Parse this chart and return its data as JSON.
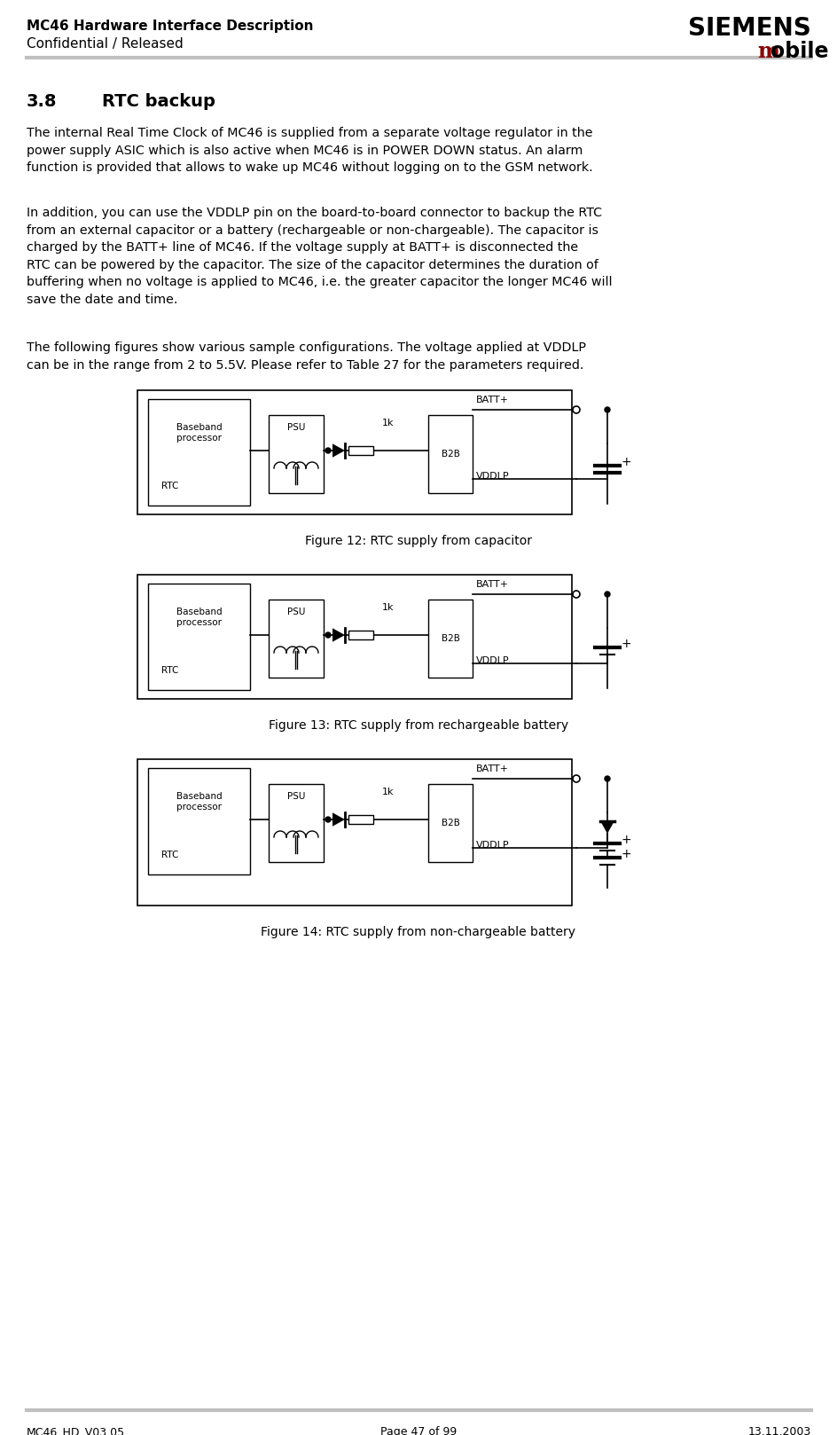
{
  "header_line1": "MC46 Hardware Interface Description",
  "header_line2": "Confidential / Released",
  "siemens_text": "SIEMENS",
  "footer_left": "MC46_HD_V03.05",
  "footer_center": "Page 47 of 99",
  "footer_right": "13.11.2003",
  "para1": "The internal Real Time Clock of MC46 is supplied from a separate voltage regulator in the\npower supply ASIC which is also active when MC46 is in POWER DOWN status. An alarm\nfunction is provided that allows to wake up MC46 without logging on to the GSM network.",
  "para2": "In addition, you can use the VDDLP pin on the board-to-board connector to backup the RTC\nfrom an external capacitor or a battery (rechargeable or non-chargeable). The capacitor is\ncharged by the BATT+ line of MC46. If the voltage supply at BATT+ is disconnected the\nRTC can be powered by the capacitor. The size of the capacitor determines the duration of\nbuffering when no voltage is applied to MC46, i.e. the greater capacitor the longer MC46 will\nsave the date and time.",
  "para3": "The following figures show various sample configurations. The voltage applied at VDDLP\ncan be in the range from 2 to 5.5V. Please refer to Table 27 for the parameters required.",
  "fig12_caption": "Figure 12: RTC supply from capacitor",
  "fig13_caption": "Figure 13: RTC supply from rechargeable battery",
  "fig14_caption": "Figure 14: RTC supply from non-chargeable battery",
  "bg_color": "#ffffff",
  "text_color": "#000000",
  "siemens_color": "#000000",
  "mobile_m_color": "#8b0000",
  "header_rule_color": "#c0c0c0",
  "footer_rule_color": "#c0c0c0"
}
